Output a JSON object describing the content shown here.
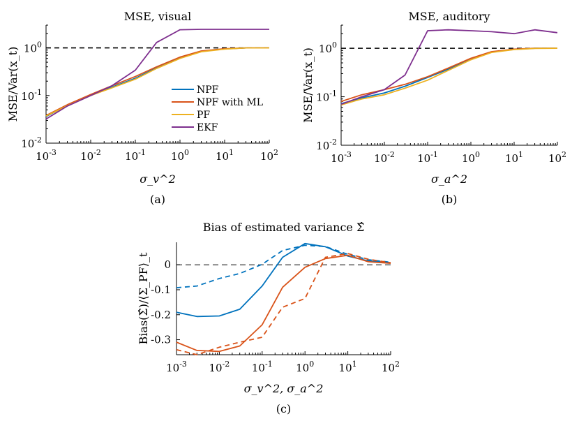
{
  "chart_data": [
    {
      "type": "line",
      "panel": "a",
      "title": "MSE, visual",
      "xlabel": "σ_v^2",
      "ylabel": "MSE/Var(x_t)",
      "caption": "(a)",
      "xscale": "log",
      "yscale": "log",
      "xlim": [
        0.001,
        100
      ],
      "ylim": [
        0.01,
        3
      ],
      "xticks": [
        0.001,
        0.01,
        0.1,
        1,
        10,
        100
      ],
      "xtick_labels": [
        {
          "b": "10",
          "e": "-3"
        },
        {
          "b": "10",
          "e": "-2"
        },
        {
          "b": "10",
          "e": "-1"
        },
        {
          "b": "10",
          "e": "0"
        },
        {
          "b": "10",
          "e": "1"
        },
        {
          "b": "10",
          "e": "2"
        }
      ],
      "yticks": [
        0.01,
        0.1,
        1
      ],
      "ytick_labels": [
        {
          "b": "10",
          "e": "-2"
        },
        {
          "b": "10",
          "e": "-1"
        },
        {
          "b": "10",
          "e": "0"
        }
      ],
      "legend": {
        "position": "lower-right",
        "entries": [
          "NPF",
          "NPF with ML",
          "PF",
          "EKF"
        ]
      },
      "reference_line": {
        "y": 1,
        "style": "dashed"
      },
      "x": [
        0.001,
        0.003,
        0.01,
        0.03,
        0.1,
        0.3,
        1,
        3,
        10,
        30,
        100
      ],
      "series": [
        {
          "name": "NPF",
          "color": "#0072BD",
          "values": [
            0.036,
            0.062,
            0.1,
            0.15,
            0.23,
            0.38,
            0.62,
            0.85,
            0.95,
            1.0,
            1.0
          ]
        },
        {
          "name": "NPF with ML",
          "color": "#D95319",
          "values": [
            0.038,
            0.064,
            0.105,
            0.16,
            0.25,
            0.4,
            0.64,
            0.86,
            0.96,
            1.0,
            1.0
          ]
        },
        {
          "name": "PF",
          "color": "#EDB120",
          "values": [
            0.037,
            0.061,
            0.1,
            0.145,
            0.22,
            0.37,
            0.6,
            0.83,
            0.94,
            1.0,
            1.0
          ]
        },
        {
          "name": "EKF",
          "color": "#7E2F8E",
          "values": [
            0.032,
            0.06,
            0.1,
            0.16,
            0.34,
            1.3,
            2.4,
            2.45,
            2.45,
            2.45,
            2.45
          ]
        }
      ]
    },
    {
      "type": "line",
      "panel": "b",
      "title": "MSE, auditory",
      "xlabel": "σ_a^2",
      "ylabel": "MSE/Var(x_t)",
      "caption": "(b)",
      "xscale": "log",
      "yscale": "log",
      "xlim": [
        0.001,
        100
      ],
      "ylim": [
        0.01,
        3
      ],
      "xticks": [
        0.001,
        0.01,
        0.1,
        1,
        10,
        100
      ],
      "xtick_labels": [
        {
          "b": "10",
          "e": "-3"
        },
        {
          "b": "10",
          "e": "-2"
        },
        {
          "b": "10",
          "e": "-1"
        },
        {
          "b": "10",
          "e": "0"
        },
        {
          "b": "10",
          "e": "1"
        },
        {
          "b": "10",
          "e": "2"
        }
      ],
      "yticks": [
        0.01,
        0.1,
        1
      ],
      "ytick_labels": [
        {
          "b": "10",
          "e": "-2"
        },
        {
          "b": "10",
          "e": "-1"
        },
        {
          "b": "10",
          "e": "0"
        }
      ],
      "reference_line": {
        "y": 1,
        "style": "dashed"
      },
      "x": [
        0.001,
        0.003,
        0.01,
        0.03,
        0.1,
        0.3,
        1,
        3,
        10,
        30,
        100
      ],
      "series": [
        {
          "name": "NPF",
          "color": "#0072BD",
          "values": [
            0.072,
            0.095,
            0.12,
            0.165,
            0.25,
            0.37,
            0.6,
            0.83,
            0.95,
            1.0,
            1.0
          ]
        },
        {
          "name": "NPF with ML",
          "color": "#D95319",
          "values": [
            0.08,
            0.11,
            0.14,
            0.18,
            0.26,
            0.39,
            0.62,
            0.85,
            0.96,
            1.0,
            1.0
          ]
        },
        {
          "name": "PF",
          "color": "#EDB120",
          "values": [
            0.068,
            0.09,
            0.11,
            0.15,
            0.22,
            0.35,
            0.58,
            0.82,
            0.94,
            0.99,
            1.0
          ]
        },
        {
          "name": "EKF",
          "color": "#7E2F8E",
          "values": [
            0.07,
            0.1,
            0.14,
            0.28,
            2.3,
            2.4,
            2.3,
            2.2,
            2.0,
            2.4,
            2.1
          ]
        }
      ]
    },
    {
      "type": "line",
      "panel": "c",
      "title": "Bias of estimated variance Σ̂",
      "xlabel": "σ_v^2, σ_a^2",
      "ylabel": "Bias(Σ̂)/⟨Σ_PF⟩_t",
      "caption": "(c)",
      "xscale": "log",
      "yscale": "linear",
      "xlim": [
        0.001,
        100
      ],
      "ylim": [
        -0.36,
        0.09
      ],
      "xticks": [
        0.001,
        0.01,
        0.1,
        1,
        10,
        100
      ],
      "xtick_labels": [
        {
          "b": "10",
          "e": "-3"
        },
        {
          "b": "10",
          "e": "-2"
        },
        {
          "b": "10",
          "e": "-1"
        },
        {
          "b": "10",
          "e": "0"
        },
        {
          "b": "10",
          "e": "1"
        },
        {
          "b": "10",
          "e": "2"
        }
      ],
      "yticks": [
        0,
        -0.1,
        -0.2,
        -0.3
      ],
      "ytick_labels": [
        "0",
        "-0.1",
        "-0.2",
        "-0.3"
      ],
      "reference_line": {
        "y": 0,
        "style": "dashed"
      },
      "x": [
        0.001,
        0.003,
        0.01,
        0.03,
        0.1,
        0.3,
        1,
        3,
        10,
        30,
        100
      ],
      "series": [
        {
          "name": "NPF (solid)",
          "color": "#0072BD",
          "dash": false,
          "values": [
            -0.19,
            -0.207,
            -0.205,
            -0.178,
            -0.085,
            0.03,
            0.085,
            0.072,
            0.035,
            0.015,
            0.008
          ]
        },
        {
          "name": "NPF (dashed)",
          "color": "#0072BD",
          "dash": true,
          "values": [
            -0.092,
            -0.085,
            -0.055,
            -0.035,
            0.002,
            0.057,
            0.078,
            0.073,
            0.042,
            0.02,
            0.01
          ]
        },
        {
          "name": "NPF with ML (solid)",
          "color": "#D95319",
          "dash": false,
          "values": [
            -0.31,
            -0.343,
            -0.347,
            -0.325,
            -0.24,
            -0.09,
            -0.01,
            0.025,
            0.038,
            0.012,
            0.006
          ]
        },
        {
          "name": "NPF with ML (dashed)",
          "color": "#D95319",
          "dash": true,
          "values": [
            -0.34,
            -0.36,
            -0.33,
            -0.31,
            -0.29,
            -0.17,
            -0.135,
            0.03,
            0.045,
            0.022,
            0.008
          ]
        }
      ]
    }
  ]
}
